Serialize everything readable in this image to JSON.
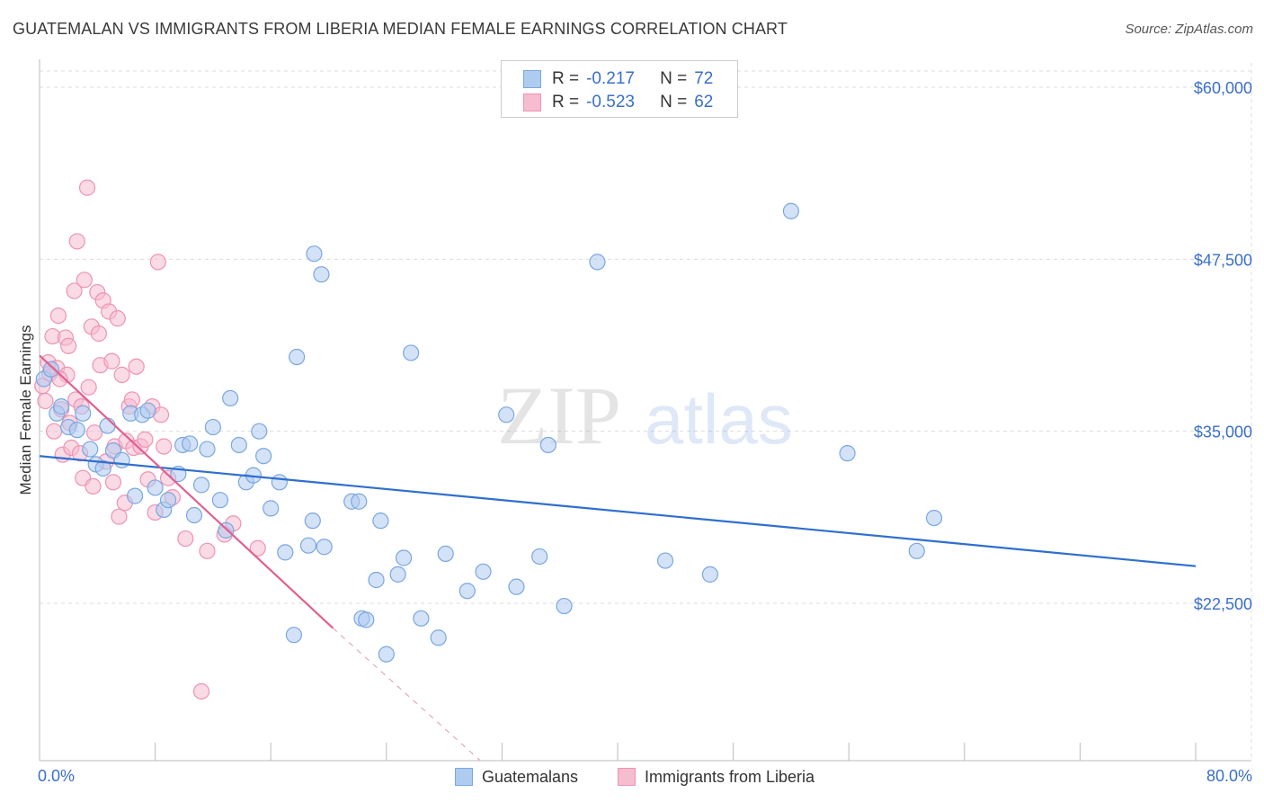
{
  "header": {
    "title": "GUATEMALAN VS IMMIGRANTS FROM LIBERIA MEDIAN FEMALE EARNINGS CORRELATION CHART",
    "source": "Source: ZipAtlas.com"
  },
  "legend": {
    "series1": {
      "r_label": "R =",
      "r_value": "-0.217",
      "n_label": "N =",
      "n_value": "72"
    },
    "series2": {
      "r_label": "R =",
      "r_value": "-0.523",
      "n_label": "N =",
      "n_value": "62"
    }
  },
  "bottom_legend": {
    "series1": "Guatemalans",
    "series2": "Immigrants from Liberia"
  },
  "watermark": {
    "part1": "ZIP",
    "part2": "atlas"
  },
  "chart_data": {
    "type": "scatter",
    "title": "GUATEMALAN VS IMMIGRANTS FROM LIBERIA MEDIAN FEMALE EARNINGS CORRELATION CHART",
    "xlabel": "",
    "ylabel": "Median Female Earnings",
    "xlim": [
      0,
      80
    ],
    "ylim": [
      12000,
      62000
    ],
    "x_tick_labels": {
      "min": "0.0%",
      "max": "80.0%"
    },
    "y_ticks": [
      {
        "value": 22500,
        "label": "$22,500"
      },
      {
        "value": 35000,
        "label": "$35,000"
      },
      {
        "value": 47500,
        "label": "$47,500"
      },
      {
        "value": 60000,
        "label": "$60,000"
      }
    ],
    "colors": {
      "guatemalans_fill": "#aecbf0",
      "guatemalans_stroke": "#7aa7e0",
      "guatemalans_line": "#2f6fcf",
      "liberia_fill": "#f6bcd0",
      "liberia_stroke": "#ee93b4",
      "liberia_line": "#e0608f",
      "axis_label": "#3a6fc9",
      "grid": "#dddddd"
    },
    "series": [
      {
        "name": "Guatemalans",
        "trend": {
          "x0": 0,
          "y0": 33200,
          "x1": 80,
          "y1": 25200
        },
        "points": [
          [
            0.3,
            38800
          ],
          [
            0.8,
            39500
          ],
          [
            1.2,
            36300
          ],
          [
            1.5,
            36800
          ],
          [
            2.0,
            35300
          ],
          [
            2.6,
            35100
          ],
          [
            3.0,
            36300
          ],
          [
            3.5,
            33700
          ],
          [
            3.9,
            32600
          ],
          [
            4.4,
            32300
          ],
          [
            4.7,
            35400
          ],
          [
            5.1,
            33600
          ],
          [
            5.7,
            32900
          ],
          [
            6.3,
            36300
          ],
          [
            6.6,
            30300
          ],
          [
            7.1,
            36200
          ],
          [
            7.5,
            36500
          ],
          [
            8.0,
            30900
          ],
          [
            8.6,
            29300
          ],
          [
            8.9,
            30000
          ],
          [
            9.6,
            31900
          ],
          [
            9.9,
            34000
          ],
          [
            10.4,
            34100
          ],
          [
            10.7,
            28900
          ],
          [
            11.2,
            31100
          ],
          [
            11.6,
            33700
          ],
          [
            12.0,
            35300
          ],
          [
            12.5,
            30000
          ],
          [
            12.9,
            27800
          ],
          [
            13.2,
            37400
          ],
          [
            13.8,
            34000
          ],
          [
            14.3,
            31300
          ],
          [
            14.8,
            31800
          ],
          [
            15.2,
            35000
          ],
          [
            15.5,
            33200
          ],
          [
            16.0,
            29400
          ],
          [
            16.6,
            31300
          ],
          [
            17.0,
            26200
          ],
          [
            17.6,
            20200
          ],
          [
            17.8,
            40400
          ],
          [
            18.6,
            26700
          ],
          [
            18.9,
            28500
          ],
          [
            19.0,
            47900
          ],
          [
            19.5,
            46400
          ],
          [
            19.7,
            26600
          ],
          [
            21.6,
            29900
          ],
          [
            22.1,
            29900
          ],
          [
            22.3,
            21400
          ],
          [
            22.6,
            21300
          ],
          [
            23.3,
            24200
          ],
          [
            23.6,
            28500
          ],
          [
            24.0,
            18800
          ],
          [
            24.8,
            24600
          ],
          [
            25.2,
            25800
          ],
          [
            25.7,
            40700
          ],
          [
            26.4,
            21400
          ],
          [
            27.6,
            20000
          ],
          [
            28.1,
            26100
          ],
          [
            29.6,
            23400
          ],
          [
            30.7,
            24800
          ],
          [
            32.3,
            36200
          ],
          [
            33.0,
            23700
          ],
          [
            34.6,
            25900
          ],
          [
            35.2,
            34000
          ],
          [
            36.3,
            22300
          ],
          [
            38.6,
            47300
          ],
          [
            43.3,
            25600
          ],
          [
            46.4,
            24600
          ],
          [
            52.0,
            51000
          ],
          [
            55.9,
            33400
          ],
          [
            60.7,
            26300
          ],
          [
            61.9,
            28700
          ]
        ]
      },
      {
        "name": "Immigrants from Liberia",
        "trend": {
          "x0": 0,
          "y0": 40500,
          "x1": 20.3,
          "y1": 20700
        },
        "trend_dashed": {
          "x0": 20.3,
          "y0": 20700,
          "x1": 30.5,
          "y1": 10800
        },
        "points": [
          [
            0.2,
            38300
          ],
          [
            0.4,
            37200
          ],
          [
            0.6,
            40000
          ],
          [
            0.9,
            41900
          ],
          [
            1.0,
            35000
          ],
          [
            1.2,
            39600
          ],
          [
            1.3,
            43400
          ],
          [
            1.5,
            36600
          ],
          [
            1.6,
            33300
          ],
          [
            1.8,
            41800
          ],
          [
            1.9,
            39100
          ],
          [
            2.0,
            41200
          ],
          [
            2.1,
            35600
          ],
          [
            2.2,
            33800
          ],
          [
            2.4,
            45200
          ],
          [
            2.5,
            37300
          ],
          [
            2.6,
            48800
          ],
          [
            2.8,
            33400
          ],
          [
            2.9,
            36800
          ],
          [
            3.0,
            31600
          ],
          [
            3.1,
            46000
          ],
          [
            3.3,
            52700
          ],
          [
            3.4,
            38200
          ],
          [
            3.6,
            42600
          ],
          [
            3.7,
            31000
          ],
          [
            3.8,
            34900
          ],
          [
            4.0,
            45100
          ],
          [
            4.1,
            42100
          ],
          [
            4.2,
            39800
          ],
          [
            4.4,
            44500
          ],
          [
            4.6,
            32800
          ],
          [
            4.8,
            43700
          ],
          [
            5.0,
            40100
          ],
          [
            5.1,
            31300
          ],
          [
            5.2,
            33900
          ],
          [
            5.4,
            43200
          ],
          [
            5.5,
            28800
          ],
          [
            5.7,
            39100
          ],
          [
            5.9,
            29800
          ],
          [
            6.0,
            34300
          ],
          [
            6.2,
            36800
          ],
          [
            6.4,
            37300
          ],
          [
            6.5,
            33800
          ],
          [
            6.7,
            39700
          ],
          [
            7.0,
            33900
          ],
          [
            7.3,
            34400
          ],
          [
            7.5,
            31500
          ],
          [
            7.8,
            36800
          ],
          [
            8.0,
            29100
          ],
          [
            8.2,
            47300
          ],
          [
            8.4,
            36200
          ],
          [
            8.6,
            33900
          ],
          [
            8.9,
            31600
          ],
          [
            9.2,
            30200
          ],
          [
            10.1,
            27200
          ],
          [
            11.2,
            16100
          ],
          [
            11.6,
            26300
          ],
          [
            12.8,
            27500
          ],
          [
            13.4,
            28300
          ],
          [
            15.1,
            26500
          ],
          [
            0.7,
            39200
          ],
          [
            1.4,
            38800
          ]
        ]
      }
    ]
  }
}
